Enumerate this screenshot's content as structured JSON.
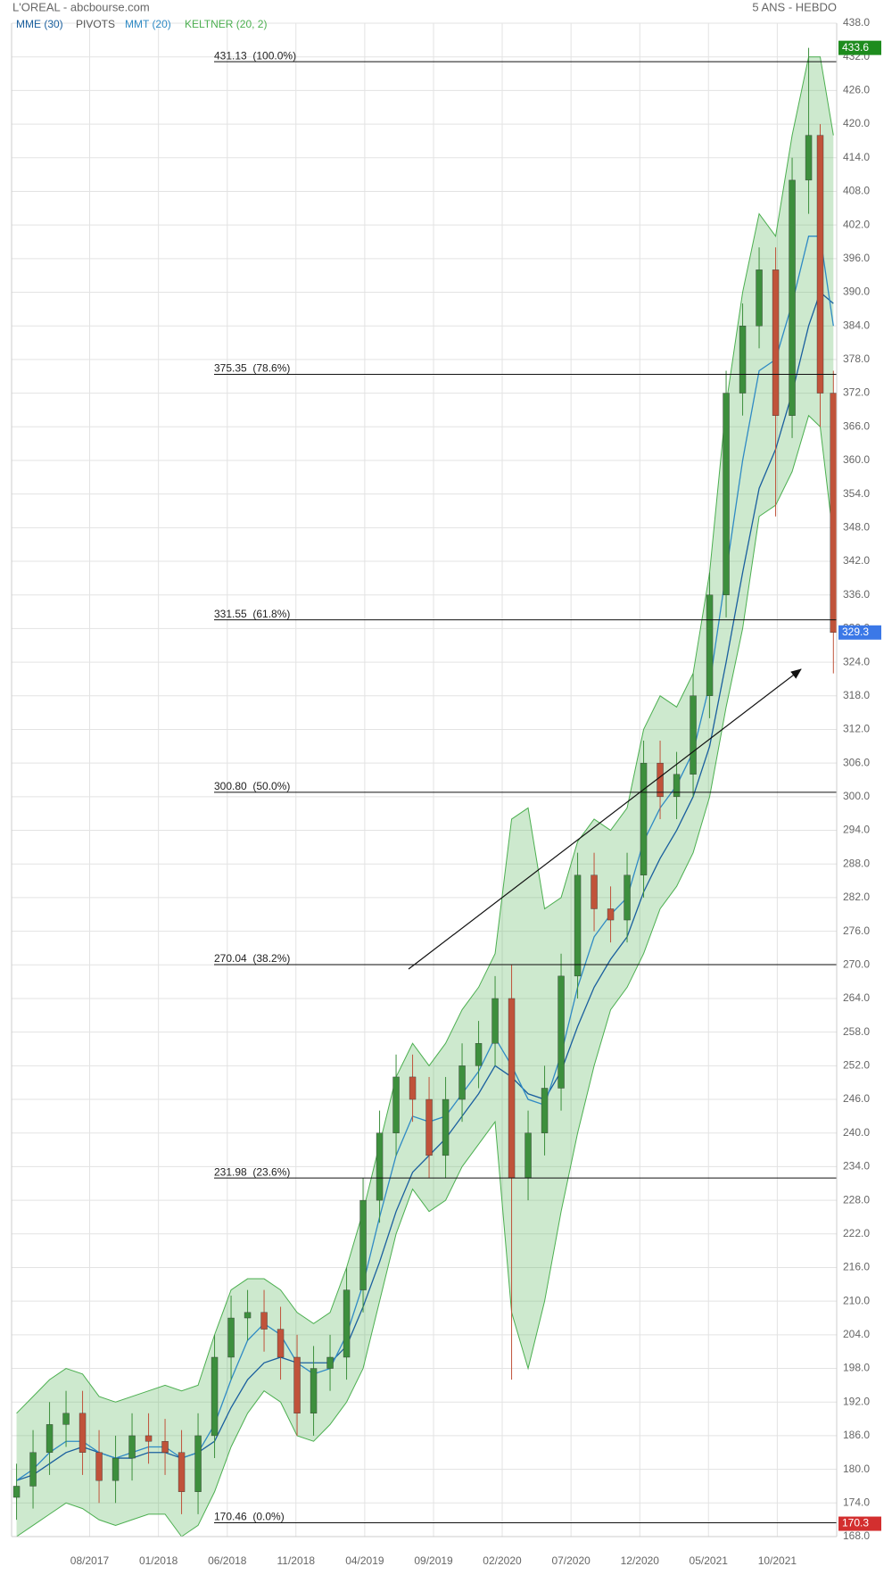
{
  "header": {
    "title": "L'OREAL - abcbourse.com",
    "period": "5 ANS - HEBDO"
  },
  "chart_data": {
    "type": "candlestick",
    "legend": {
      "pivots_label": "PIVOTS"
    },
    "candles": {
      "x": [
        2017.14,
        2017.24,
        2017.34,
        2017.44,
        2017.54,
        2017.64,
        2017.74,
        2017.84,
        2017.94,
        2018.04,
        2018.14,
        2018.24,
        2018.34,
        2018.44,
        2018.54,
        2018.64,
        2018.74,
        2018.84,
        2018.94,
        2019.04,
        2019.14,
        2019.24,
        2019.34,
        2019.44,
        2019.54,
        2019.64,
        2019.74,
        2019.84,
        2019.94,
        2020.04,
        2020.14,
        2020.24,
        2020.34,
        2020.44,
        2020.54,
        2020.64,
        2020.74,
        2020.84,
        2020.94,
        2021.04,
        2021.14,
        2021.24,
        2021.34,
        2021.44,
        2021.54,
        2021.64,
        2021.74,
        2021.84,
        2021.94,
        2022.01,
        2022.09
      ],
      "open": [
        175,
        177,
        183,
        188,
        190,
        183,
        178,
        182,
        186,
        185,
        183,
        176,
        186,
        200,
        207,
        208,
        205,
        200,
        190,
        198,
        200,
        212,
        228,
        240,
        250,
        246,
        236,
        246,
        252,
        256,
        264,
        232,
        240,
        248,
        268,
        286,
        280,
        278,
        286,
        306,
        300,
        304,
        318,
        336,
        372,
        384,
        394,
        368,
        410,
        418,
        372
      ],
      "high": [
        181,
        187,
        192,
        194,
        194,
        187,
        186,
        190,
        190,
        189,
        187,
        190,
        204,
        211,
        212,
        212,
        209,
        204,
        202,
        204,
        216,
        232,
        244,
        254,
        254,
        250,
        250,
        256,
        260,
        268,
        270,
        244,
        252,
        272,
        290,
        290,
        284,
        290,
        310,
        310,
        308,
        322,
        340,
        376,
        388,
        398,
        398,
        414,
        433.6,
        420,
        376
      ],
      "low": [
        171,
        173,
        179,
        184,
        179,
        174,
        174,
        178,
        181,
        179,
        172,
        172,
        182,
        196,
        203,
        201,
        196,
        186,
        186,
        194,
        196,
        208,
        224,
        236,
        242,
        232,
        232,
        242,
        248,
        252,
        196,
        228,
        236,
        244,
        264,
        276,
        274,
        274,
        282,
        296,
        296,
        300,
        314,
        332,
        368,
        380,
        350,
        364,
        404,
        366,
        322
      ],
      "close": [
        177,
        183,
        188,
        190,
        183,
        178,
        182,
        186,
        185,
        183,
        176,
        186,
        200,
        207,
        208,
        205,
        200,
        190,
        198,
        200,
        212,
        228,
        240,
        250,
        246,
        236,
        246,
        252,
        256,
        264,
        232,
        240,
        248,
        268,
        286,
        280,
        278,
        286,
        306,
        300,
        304,
        318,
        336,
        372,
        384,
        394,
        368,
        410,
        418,
        372,
        329.3
      ],
      "up_color": "#3d8f3d",
      "down_color": "#c0533a"
    },
    "series": [
      {
        "name": "MME (30)",
        "color": "#1a5f9e",
        "values": [
          178,
          179,
          181,
          183,
          184,
          183,
          182,
          182,
          183,
          183,
          182,
          183,
          185,
          191,
          196,
          199,
          200,
          199,
          199,
          199,
          202,
          209,
          217,
          226,
          233,
          236,
          239,
          243,
          247,
          252,
          250,
          247,
          246,
          251,
          259,
          266,
          271,
          275,
          283,
          289,
          294,
          300,
          309,
          324,
          340,
          355,
          362,
          372,
          384,
          390,
          388
        ]
      },
      {
        "name": "MMT (20)",
        "color": "#2f8ac4",
        "values": [
          178,
          180,
          183,
          185,
          185,
          183,
          182,
          183,
          184,
          184,
          182,
          183,
          188,
          196,
          203,
          206,
          204,
          199,
          197,
          198,
          204,
          213,
          225,
          236,
          243,
          242,
          243,
          247,
          251,
          257,
          252,
          246,
          245,
          254,
          266,
          275,
          279,
          282,
          292,
          298,
          302,
          308,
          320,
          340,
          360,
          376,
          378,
          388,
          400,
          400,
          384
        ]
      }
    ],
    "keltner": {
      "name": "KELTNER (20, 2)",
      "color": "#4caf50",
      "upper": [
        190,
        193,
        196,
        198,
        197,
        193,
        192,
        193,
        194,
        195,
        194,
        195,
        204,
        212,
        214,
        214,
        212,
        208,
        206,
        208,
        216,
        226,
        238,
        250,
        256,
        252,
        256,
        262,
        266,
        272,
        296,
        298,
        280,
        282,
        292,
        296,
        294,
        298,
        312,
        318,
        316,
        322,
        340,
        370,
        390,
        404,
        400,
        418,
        432,
        432,
        418
      ],
      "lower": [
        168,
        170,
        172,
        174,
        173,
        171,
        170,
        171,
        172,
        172,
        168,
        170,
        176,
        184,
        190,
        194,
        192,
        186,
        185,
        188,
        192,
        198,
        210,
        222,
        230,
        226,
        228,
        234,
        238,
        242,
        208,
        198,
        210,
        226,
        240,
        252,
        262,
        266,
        272,
        280,
        284,
        290,
        300,
        316,
        330,
        350,
        352,
        358,
        368,
        366,
        346
      ]
    },
    "fib_levels": [
      {
        "value": 431.13,
        "label": "431.13  (100.0%)"
      },
      {
        "value": 375.35,
        "label": "375.35  (78.6%)"
      },
      {
        "value": 331.55,
        "label": "331.55  (61.8%)"
      },
      {
        "value": 300.8,
        "label": "300.80  (50.0%)"
      },
      {
        "value": 270.04,
        "label": "270.04  (38.2%)"
      },
      {
        "value": 231.98,
        "label": "231.98  (23.6%)"
      },
      {
        "value": 170.46,
        "label": "170.46  (0.0%)"
      }
    ],
    "price_tags": [
      {
        "value": 433.6,
        "color": "#1e8c1e"
      },
      {
        "value": 329.3,
        "color": "#3b78e7"
      },
      {
        "value": 170.3,
        "color": "#d32f2f"
      }
    ],
    "xlim": [
      2017.11,
      2022.11
    ],
    "xticks": [
      {
        "value": 2017.583,
        "label": "08/2017"
      },
      {
        "value": 2018.0,
        "label": "01/2018"
      },
      {
        "value": 2018.417,
        "label": "06/2018"
      },
      {
        "value": 2018.833,
        "label": "11/2018"
      },
      {
        "value": 2019.25,
        "label": "04/2019"
      },
      {
        "value": 2019.667,
        "label": "09/2019"
      },
      {
        "value": 2020.083,
        "label": "02/2020"
      },
      {
        "value": 2020.5,
        "label": "07/2020"
      },
      {
        "value": 2020.917,
        "label": "12/2020"
      },
      {
        "value": 2021.333,
        "label": "05/2021"
      },
      {
        "value": 2021.75,
        "label": "10/2021"
      }
    ],
    "ylim": [
      168,
      438
    ],
    "yticks": [
      {
        "value": 168,
        "label": "168.0"
      },
      {
        "value": 174,
        "label": "174.0"
      },
      {
        "value": 180,
        "label": "180.0"
      },
      {
        "value": 186,
        "label": "186.0"
      },
      {
        "value": 192,
        "label": "192.0"
      },
      {
        "value": 198,
        "label": "198.0"
      },
      {
        "value": 204,
        "label": "204.0"
      },
      {
        "value": 210,
        "label": "210.0"
      },
      {
        "value": 216,
        "label": "216.0"
      },
      {
        "value": 222,
        "label": "222.0"
      },
      {
        "value": 228,
        "label": "228.0"
      },
      {
        "value": 234,
        "label": "234.0"
      },
      {
        "value": 240,
        "label": "240.0"
      },
      {
        "value": 246,
        "label": "246.0"
      },
      {
        "value": 252,
        "label": "252.0"
      },
      {
        "value": 258,
        "label": "258.0"
      },
      {
        "value": 264,
        "label": "264.0"
      },
      {
        "value": 270,
        "label": "270.0"
      },
      {
        "value": 276,
        "label": "276.0"
      },
      {
        "value": 282,
        "label": "282.0"
      },
      {
        "value": 288,
        "label": "288.0"
      },
      {
        "value": 294,
        "label": "294.0"
      },
      {
        "value": 300,
        "label": "300.0"
      },
      {
        "value": 306,
        "label": "306.0"
      },
      {
        "value": 312,
        "label": "312.0"
      },
      {
        "value": 318,
        "label": "318.0"
      },
      {
        "value": 324,
        "label": "324.0"
      },
      {
        "value": 330,
        "label": "330.0"
      },
      {
        "value": 336,
        "label": "336.0"
      },
      {
        "value": 342,
        "label": "342.0"
      },
      {
        "value": 348,
        "label": "348.0"
      },
      {
        "value": 354,
        "label": "354.0"
      },
      {
        "value": 360,
        "label": "360.0"
      },
      {
        "value": 366,
        "label": "366.0"
      },
      {
        "value": 372,
        "label": "372.0"
      },
      {
        "value": 378,
        "label": "378.0"
      },
      {
        "value": 384,
        "label": "384.0"
      },
      {
        "value": 390,
        "label": "390.0"
      },
      {
        "value": 396,
        "label": "396.0"
      },
      {
        "value": 402,
        "label": "402.0"
      },
      {
        "value": 408,
        "label": "408.0"
      },
      {
        "value": 414,
        "label": "414.0"
      },
      {
        "value": 420,
        "label": "420.0"
      },
      {
        "value": 426,
        "label": "426.0"
      },
      {
        "value": 432,
        "label": "432.0"
      },
      {
        "value": 438,
        "label": "438.0"
      }
    ],
    "grid": true
  }
}
